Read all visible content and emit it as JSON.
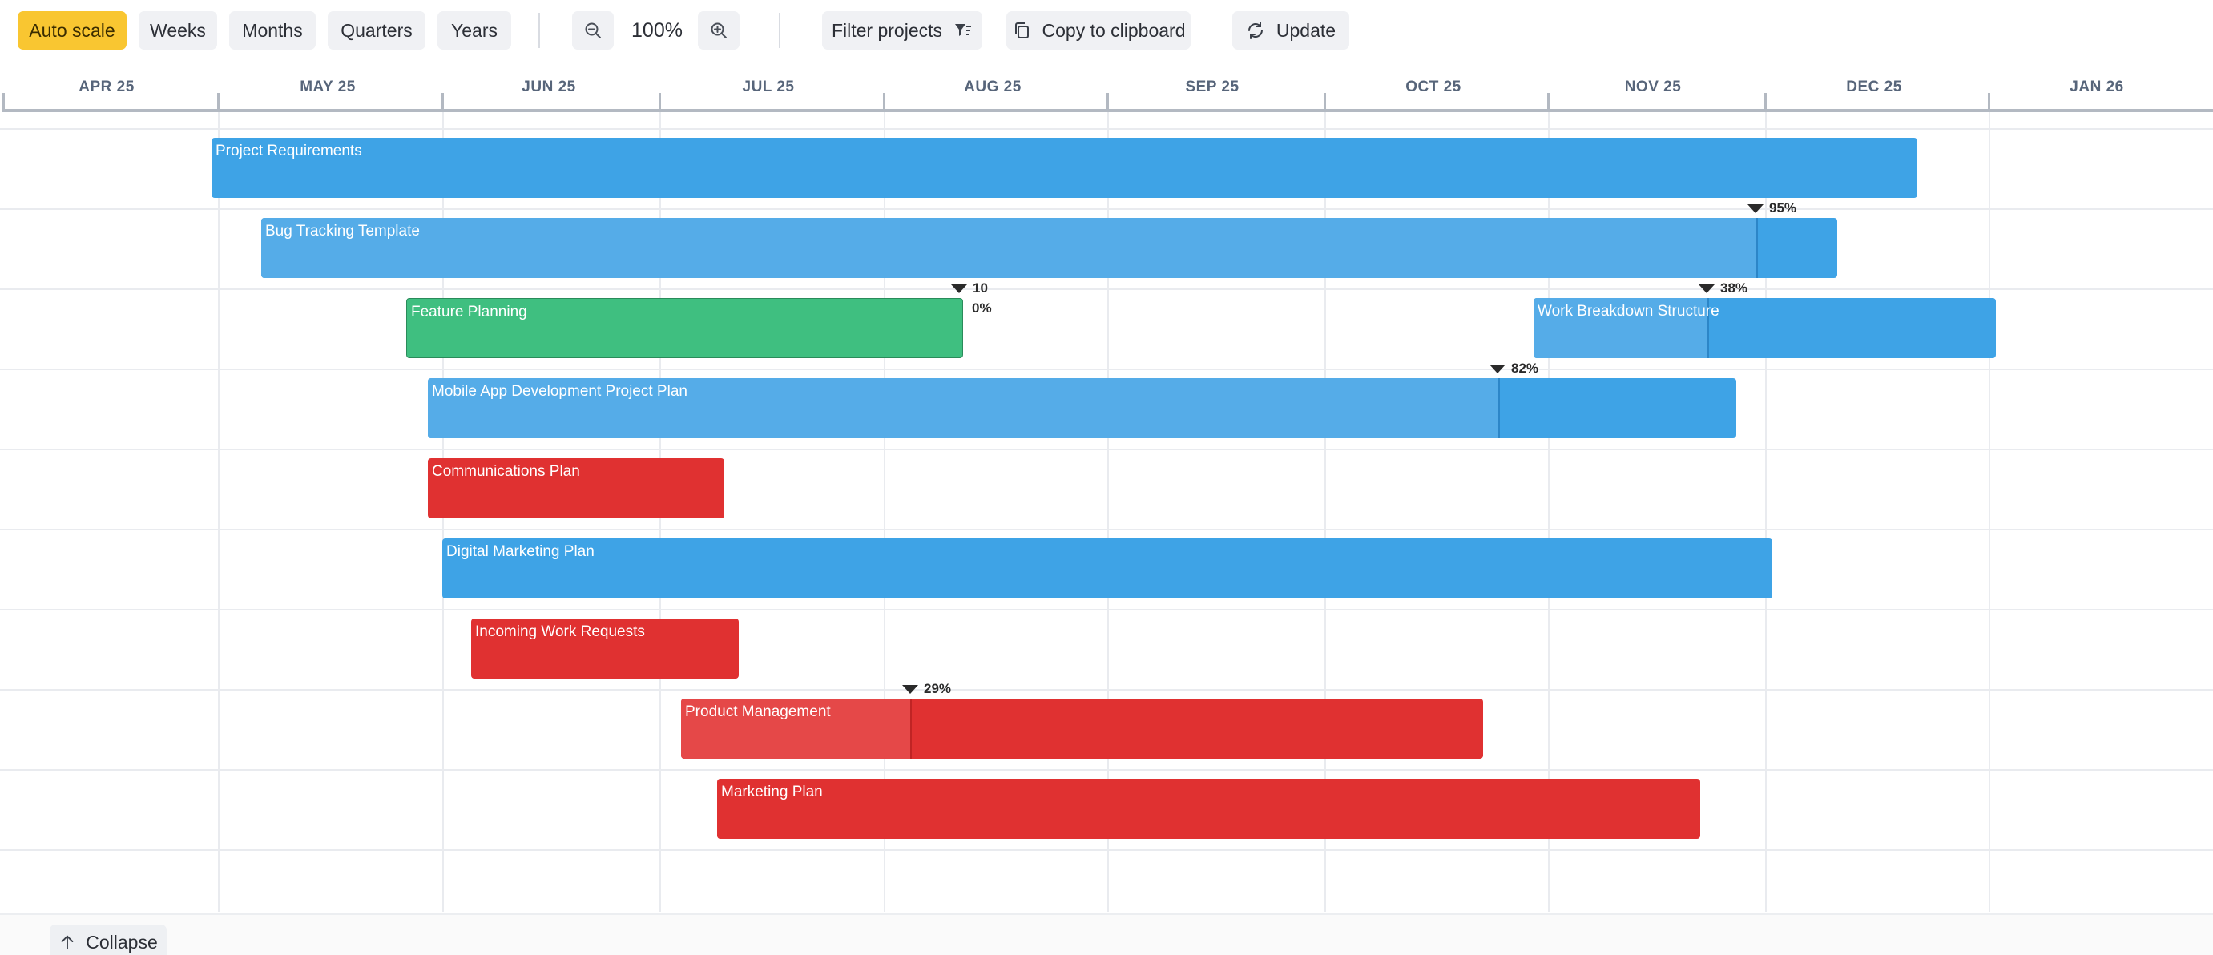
{
  "toolbar": {
    "scale_buttons": [
      "Auto scale",
      "Weeks",
      "Months",
      "Quarters",
      "Years"
    ],
    "zoom": "100%",
    "filter_label": "Filter projects",
    "copy_label": "Copy to clipboard",
    "update_label": "Update"
  },
  "timeline": {
    "months": [
      "APR 25",
      "MAY 25",
      "JUN 25",
      "JUL 25",
      "AUG 25",
      "SEP 25",
      "OCT 25",
      "NOV 25",
      "DEC 25",
      "JAN 26"
    ]
  },
  "tasks": [
    {
      "name": "Project Requirements",
      "color": "#3ea3e6"
    },
    {
      "name": "Bug Tracking Template",
      "color": "#3ea3e6",
      "progress": "95%"
    },
    {
      "name": "Feature Planning",
      "color": "#3fbf80",
      "progress": "10",
      "progress_sub": "0%"
    },
    {
      "name": "Work Breakdown Structure",
      "color": "#3ea3e6",
      "progress": "38%"
    },
    {
      "name": "Mobile App Development Project Plan",
      "color": "#3ea3e6",
      "progress": "82%"
    },
    {
      "name": "Communications Plan",
      "color": "#e03131"
    },
    {
      "name": "Digital Marketing Plan",
      "color": "#3ea3e6"
    },
    {
      "name": "Incoming Work Requests",
      "color": "#e03131"
    },
    {
      "name": "Product Management",
      "color": "#e03131",
      "progress": "29%"
    },
    {
      "name": "Marketing Plan",
      "color": "#e03131"
    }
  ],
  "footer": {
    "collapse_label": "Collapse"
  }
}
